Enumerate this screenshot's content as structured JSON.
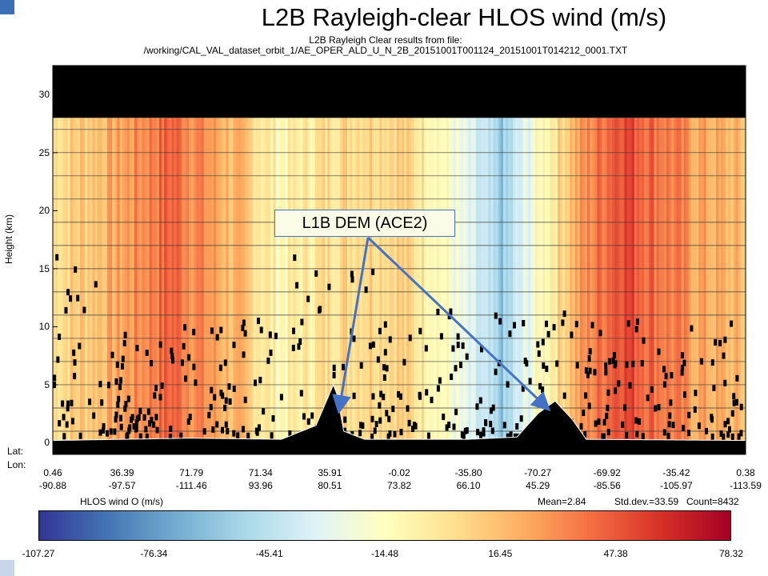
{
  "title": "L2B Rayleigh-clear  HLOS wind (m/s)",
  "subtitle_1": "L2B Rayleigh Clear results from file:",
  "subtitle_2": "/working/CAL_VAL_dataset_orbit_1/AE_OPER_ALD_U_N_2B_20151001T001124_20151001T014212_0001.TXT",
  "colors": {
    "accent": "#3a6fb5",
    "annotation_arrow": "#4472c4"
  },
  "chart_data": {
    "type": "heatmap",
    "title": "L2B Rayleigh-clear  HLOS wind (m/s)",
    "xlabel": "",
    "ylabel": "Height (km)",
    "ylim": [
      -1,
      32.5
    ],
    "yticks": [
      "0",
      "5",
      "10",
      "15",
      "20",
      "25",
      "30"
    ],
    "lat_label": "Lat:",
    "lon_label": "Lon:",
    "x_lat": [
      "0.46",
      "36.39",
      "71.79",
      "71.34",
      "35.91",
      "-0.02",
      "-35.80",
      "-70.27",
      "-69.92",
      "-35.42",
      "0.38"
    ],
    "x_lon": [
      "-90.88",
      "-97.57",
      "-111.46",
      "93.96",
      "80.51",
      "73.82",
      "66.10",
      "45.29",
      "-85.56",
      "-105.97",
      "-113.59"
    ],
    "data_top_km": 28,
    "no_data_band_km": [
      28,
      32.5
    ],
    "annotation": "L1B DEM (ACE2)",
    "colorbar": {
      "label": "HLOS wind O (m/s)",
      "ticks": [
        "-107.27",
        "-76.34",
        "-45.41",
        "-14.48",
        "16.45",
        "47.38",
        "78.32"
      ],
      "range": [
        -107.27,
        78.32
      ],
      "colors": [
        "#313695",
        "#4575b4",
        "#74add1",
        "#abd9e9",
        "#e0f3f8",
        "#ffffbf",
        "#fee090",
        "#fdae61",
        "#f46d43",
        "#d73027",
        "#a50026"
      ]
    },
    "stats": {
      "mean": "Mean=2.84",
      "std": "Std.dev.=33.59",
      "count": "Count=8432"
    },
    "wind_profile": [
      {
        "pos": 0.0,
        "v": 5
      },
      {
        "pos": 0.08,
        "v": 20
      },
      {
        "pos": 0.17,
        "v": 45
      },
      {
        "pos": 0.22,
        "v": 30
      },
      {
        "pos": 0.27,
        "v": 15
      },
      {
        "pos": 0.33,
        "v": -10
      },
      {
        "pos": 0.4,
        "v": 5
      },
      {
        "pos": 0.45,
        "v": 10
      },
      {
        "pos": 0.5,
        "v": 10
      },
      {
        "pos": 0.55,
        "v": -5
      },
      {
        "pos": 0.6,
        "v": -35
      },
      {
        "pos": 0.65,
        "v": -60
      },
      {
        "pos": 0.7,
        "v": -15
      },
      {
        "pos": 0.75,
        "v": 20
      },
      {
        "pos": 0.82,
        "v": 55
      },
      {
        "pos": 0.88,
        "v": 40
      },
      {
        "pos": 0.93,
        "v": 25
      },
      {
        "pos": 1.0,
        "v": 15
      }
    ],
    "terrain_km": [
      {
        "pos": 0.0,
        "h": 0.2
      },
      {
        "pos": 0.1,
        "h": 0.3
      },
      {
        "pos": 0.2,
        "h": 0.4
      },
      {
        "pos": 0.33,
        "h": 0.3
      },
      {
        "pos": 0.38,
        "h": 1.5
      },
      {
        "pos": 0.405,
        "h": 5.0
      },
      {
        "pos": 0.41,
        "h": 4.2
      },
      {
        "pos": 0.42,
        "h": 1.0
      },
      {
        "pos": 0.45,
        "h": 0.3
      },
      {
        "pos": 0.6,
        "h": 0.3
      },
      {
        "pos": 0.67,
        "h": 0.5
      },
      {
        "pos": 0.7,
        "h": 2.5
      },
      {
        "pos": 0.725,
        "h": 3.6
      },
      {
        "pos": 0.75,
        "h": 2.0
      },
      {
        "pos": 0.77,
        "h": 0.3
      },
      {
        "pos": 1.0,
        "h": 0.2
      }
    ]
  }
}
